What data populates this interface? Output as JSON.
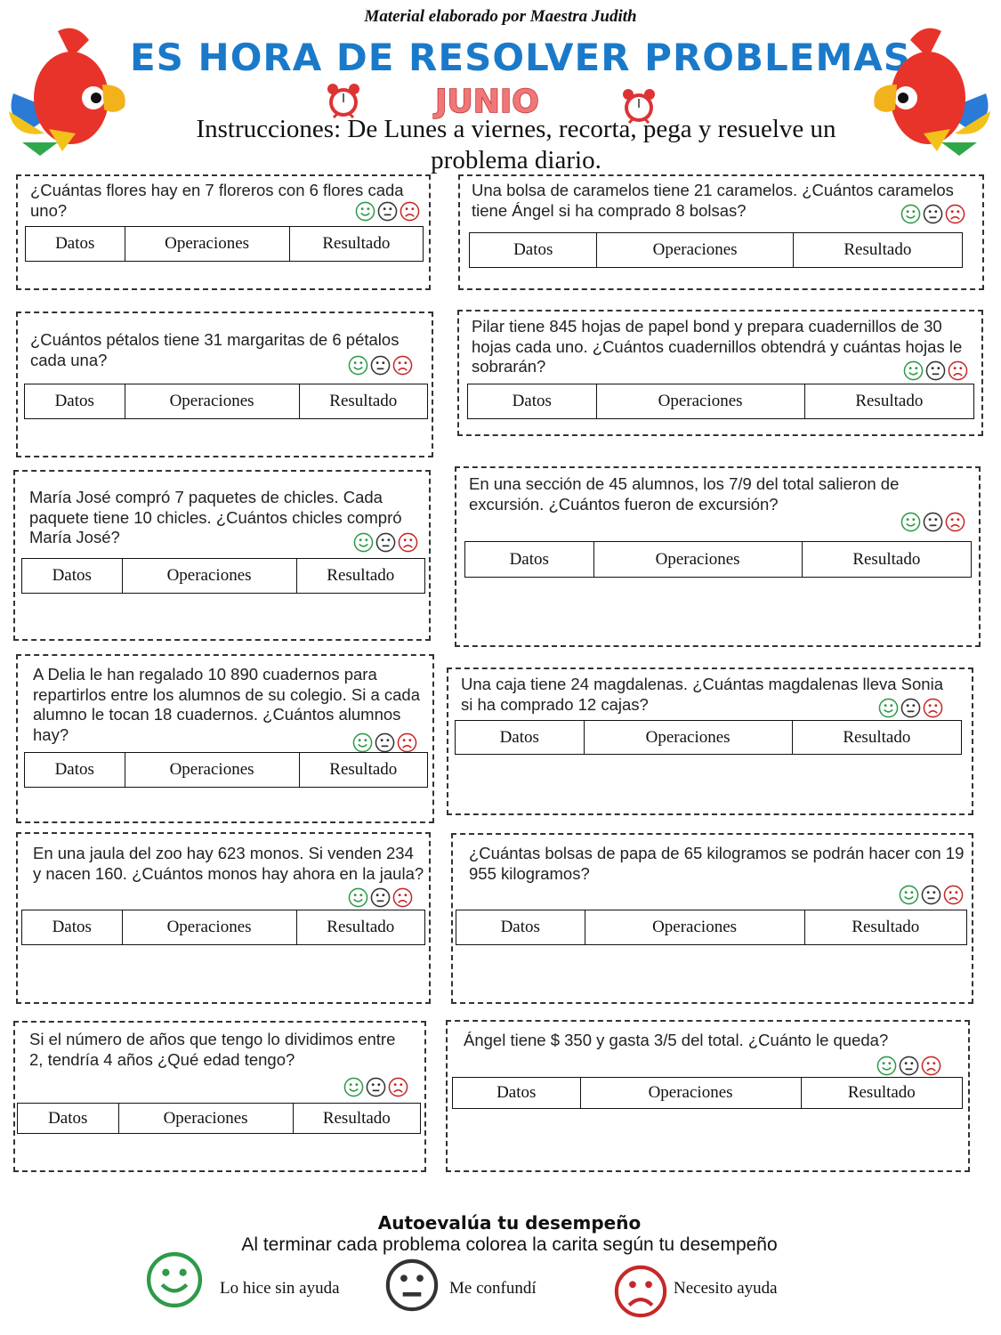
{
  "header": {
    "credit": "Material elaborado por Maestra Judith",
    "title": "ES HORA DE RESOLVER PROBLEMAS",
    "month": "JUNIO",
    "instructions": "Instrucciones: De Lunes a viernes, recorta, pega y resuelve un problema diario."
  },
  "table_headers": [
    "Datos",
    "Operaciones",
    "Resultado"
  ],
  "problems": [
    {
      "text": "¿Cuántas flores hay en 7 floreros con 6 flores cada uno?"
    },
    {
      "text": "Una bolsa de caramelos tiene 21 caramelos. ¿Cuántos caramelos tiene Ángel si ha comprado 8 bolsas?"
    },
    {
      "text": "¿Cuántos pétalos tiene 31 margaritas de 6 pétalos cada una?"
    },
    {
      "text": "Pilar tiene 845 hojas de papel bond y prepara cuadernillos de 30 hojas cada uno. ¿Cuántos cuadernillos obtendrá y cuántas hojas le sobrarán?"
    },
    {
      "text": "María José compró 7 paquetes de chicles. Cada paquete tiene 10 chicles. ¿Cuántos chicles compró María José?"
    },
    {
      "text": "En una sección de 45 alumnos, los 7/9 del total salieron de excursión. ¿Cuántos fueron de excursión?"
    },
    {
      "text": "A Delia le han regalado 10 890 cuadernos para repartirlos entre los alumnos de su colegio. Si a cada alumno le tocan 18 cuadernos. ¿Cuántos alumnos hay?"
    },
    {
      "text": "Una caja tiene 24 magdalenas. ¿Cuántas magdalenas lleva Sonia si ha comprado 12 cajas?"
    },
    {
      "text": "En una jaula del zoo hay 623 monos. Si venden 234 y nacen 160. ¿Cuántos monos hay ahora en la jaula?"
    },
    {
      "text": "¿Cuántas bolsas de papa de 65 kilogramos se podrán hacer con 19 955 kilogramos?"
    },
    {
      "text": "Si el número de años que tengo lo dividimos entre 2, tendría 4 años ¿Qué edad tengo?"
    },
    {
      "text": "Ángel tiene $ 350 y gasta 3/5 del total. ¿Cuánto le queda?"
    }
  ],
  "self_eval": {
    "title": "Autoevalúa tu desempeño",
    "subtitle": "Al terminar cada problema colorea la carita según tu desempeño",
    "legend": [
      {
        "label": "Lo hice sin ayuda",
        "icon": "happy-face-icon",
        "color": "#2e9a48"
      },
      {
        "label": "Me confundí",
        "icon": "neutral-face-icon",
        "color": "#333333"
      },
      {
        "label": "Necesito ayuda",
        "icon": "sad-face-icon",
        "color": "#c62828"
      }
    ]
  },
  "colors": {
    "title": "#1a7ac9",
    "month": "#e05050",
    "happy": "#2e9a48",
    "neutral": "#333333",
    "sad": "#c62828"
  }
}
